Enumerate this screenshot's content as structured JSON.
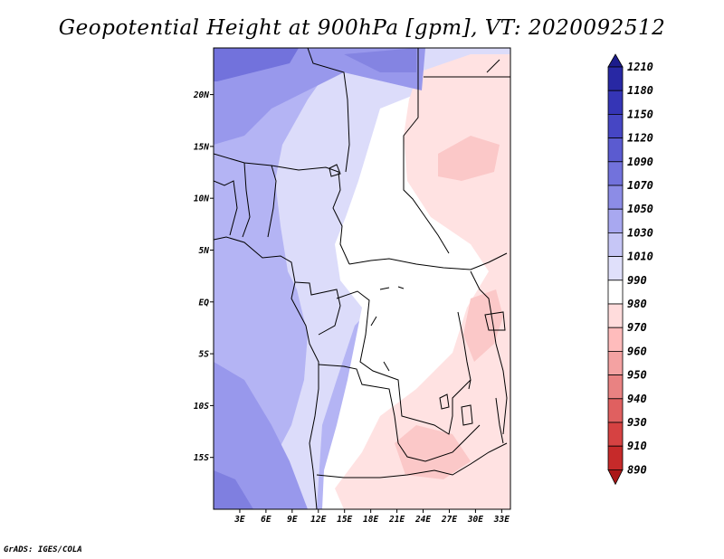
{
  "title": "Geopotential Height at 900hPa [gpm], VT: 2020092512",
  "credit": "GrADS: IGES/COLA",
  "map": {
    "lon_range": [
      0,
      34
    ],
    "lat_range": [
      -20,
      24.5
    ],
    "lat_ticks": [
      {
        "value": 20,
        "label": "20N"
      },
      {
        "value": 15,
        "label": "15N"
      },
      {
        "value": 10,
        "label": "10N"
      },
      {
        "value": 5,
        "label": "5N"
      },
      {
        "value": 0,
        "label": "EQ"
      },
      {
        "value": -5,
        "label": "5S"
      },
      {
        "value": -10,
        "label": "10S"
      },
      {
        "value": -15,
        "label": "15S"
      }
    ],
    "lon_ticks": [
      {
        "value": 3,
        "label": "3E"
      },
      {
        "value": 6,
        "label": "6E"
      },
      {
        "value": 9,
        "label": "9E"
      },
      {
        "value": 12,
        "label": "12E"
      },
      {
        "value": 15,
        "label": "15E"
      },
      {
        "value": 18,
        "label": "18E"
      },
      {
        "value": 21,
        "label": "21E"
      },
      {
        "value": 24,
        "label": "24E"
      },
      {
        "value": 27,
        "label": "27E"
      },
      {
        "value": 30,
        "label": "30E"
      },
      {
        "value": 33,
        "label": "33E"
      }
    ]
  },
  "colorbar": {
    "levels": [
      "1210",
      "1180",
      "1150",
      "1120",
      "1090",
      "1070",
      "1050",
      "1030",
      "1010",
      "990",
      "980",
      "970",
      "960",
      "950",
      "940",
      "930",
      "910",
      "890"
    ],
    "colors": [
      "#1c1c8c",
      "#2828a4",
      "#3535b6",
      "#4646c4",
      "#5b5bd0",
      "#7272dc",
      "#8c8ce6",
      "#a8a8f0",
      "#c6c6f6",
      "#e0e0fb",
      "#ffffff",
      "#ffdcdc",
      "#ffbcbc",
      "#f4a2a2",
      "#e98282",
      "#e06060",
      "#d64242",
      "#c62a2a",
      "#aa1616"
    ]
  },
  "field_colors": {
    "c1070": "#7272dc",
    "c1050": "#9898ec",
    "c1030": "#b4b4f4",
    "c1010": "#dcdcfa",
    "c990": "#ffffff",
    "c980": "#ffe2e2",
    "c970": "#fbc8c8"
  }
}
